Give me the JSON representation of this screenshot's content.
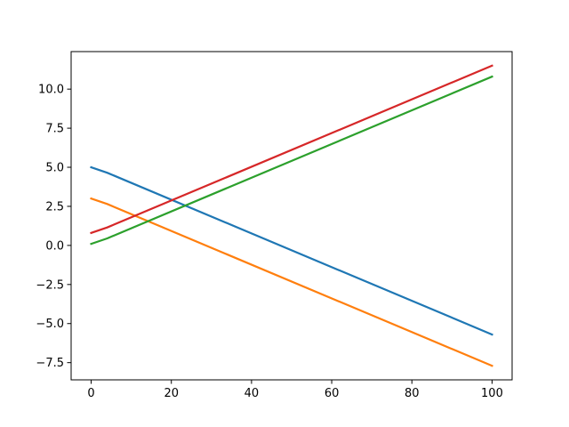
{
  "chart_data": {
    "type": "line",
    "title": "",
    "xlabel": "",
    "ylabel": "",
    "xlim": [
      -5,
      105
    ],
    "ylim": [
      -8.6,
      12.4
    ],
    "grid": false,
    "legend": "none",
    "x_ticks": [
      {
        "value": 0,
        "label": "0"
      },
      {
        "value": 20,
        "label": "20"
      },
      {
        "value": 40,
        "label": "40"
      },
      {
        "value": 60,
        "label": "60"
      },
      {
        "value": 80,
        "label": "80"
      },
      {
        "value": 100,
        "label": "100"
      }
    ],
    "y_ticks": [
      {
        "value": -7.5,
        "label": "−7.5"
      },
      {
        "value": -5.0,
        "label": "−5.0"
      },
      {
        "value": -2.5,
        "label": "−2.5"
      },
      {
        "value": 0.0,
        "label": "0.0"
      },
      {
        "value": 2.5,
        "label": "2.5"
      },
      {
        "value": 5.0,
        "label": "5.0"
      },
      {
        "value": 7.5,
        "label": "7.5"
      },
      {
        "value": 10.0,
        "label": "10.0"
      }
    ],
    "series": [
      {
        "color": "#1f77b4",
        "points": [
          [
            0,
            5.0
          ],
          [
            4,
            4.65
          ],
          [
            100,
            -5.7
          ]
        ]
      },
      {
        "color": "#ff7f0e",
        "points": [
          [
            0,
            3.0
          ],
          [
            4,
            2.65
          ],
          [
            100,
            -7.7
          ]
        ]
      },
      {
        "color": "#2ca02c",
        "points": [
          [
            0,
            0.1
          ],
          [
            4,
            0.45
          ],
          [
            100,
            10.8
          ]
        ]
      },
      {
        "color": "#d62728",
        "points": [
          [
            0,
            0.8
          ],
          [
            4,
            1.15
          ],
          [
            100,
            11.5
          ]
        ]
      }
    ]
  }
}
